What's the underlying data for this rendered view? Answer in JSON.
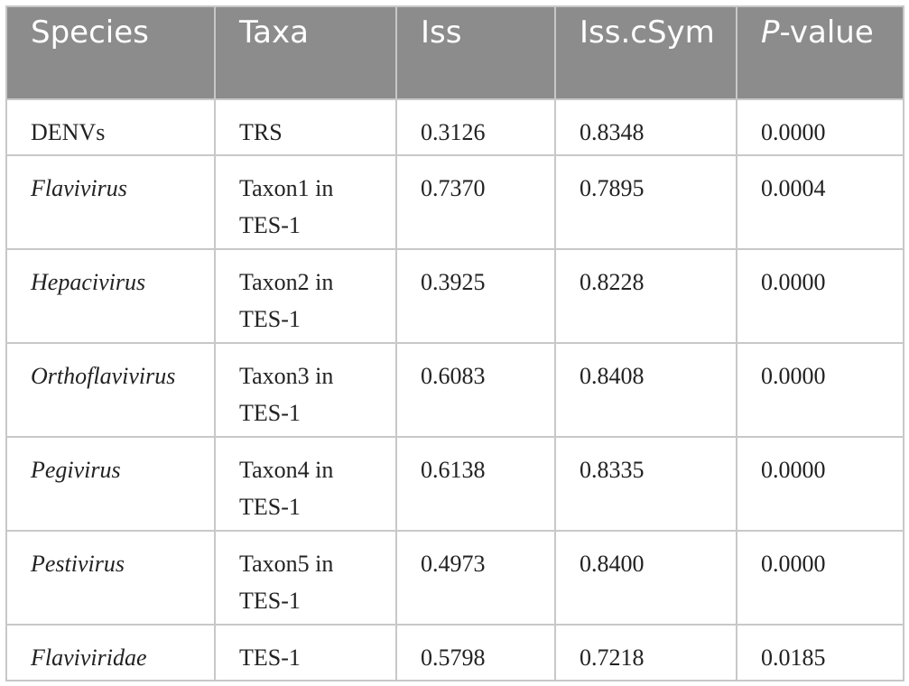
{
  "table": {
    "headers": {
      "species": "Species",
      "taxa": "Taxa",
      "iss": "Iss",
      "iss_csym": "Iss.cSym",
      "p_value_italic": "P",
      "p_value_rest": "-value"
    },
    "rows": [
      {
        "species": "DENVs",
        "taxa": "TRS",
        "iss": "0.3126",
        "iss_csym": "0.8348",
        "p_value": "0.0000"
      },
      {
        "species": "Flavivirus",
        "taxa": "Taxon1 in TES-1",
        "iss": "0.7370",
        "iss_csym": "0.7895",
        "p_value": "0.0004"
      },
      {
        "species": "Hepacivirus",
        "taxa": "Taxon2 in TES-1",
        "iss": "0.3925",
        "iss_csym": "0.8228",
        "p_value": "0.0000"
      },
      {
        "species": "Orthoflavivirus",
        "taxa": "Taxon3 in TES-1",
        "iss": "0.6083",
        "iss_csym": "0.8408",
        "p_value": "0.0000"
      },
      {
        "species": "Pegivirus",
        "taxa": "Taxon4 in TES-1",
        "iss": "0.6138",
        "iss_csym": "0.8335",
        "p_value": "0.0000"
      },
      {
        "species": "Pestivirus",
        "taxa": "Taxon5 in TES-1",
        "iss": "0.4973",
        "iss_csym": "0.8400",
        "p_value": "0.0000"
      },
      {
        "species": "Flaviviridae",
        "taxa": "TES-1",
        "iss": "0.5798",
        "iss_csym": "0.7218",
        "p_value": "0.0185"
      }
    ]
  },
  "colors": {
    "header_background": "#8c8c8c",
    "header_text": "#ffffff",
    "grid_border": "#c8c8c8",
    "body_text": "#222222"
  }
}
